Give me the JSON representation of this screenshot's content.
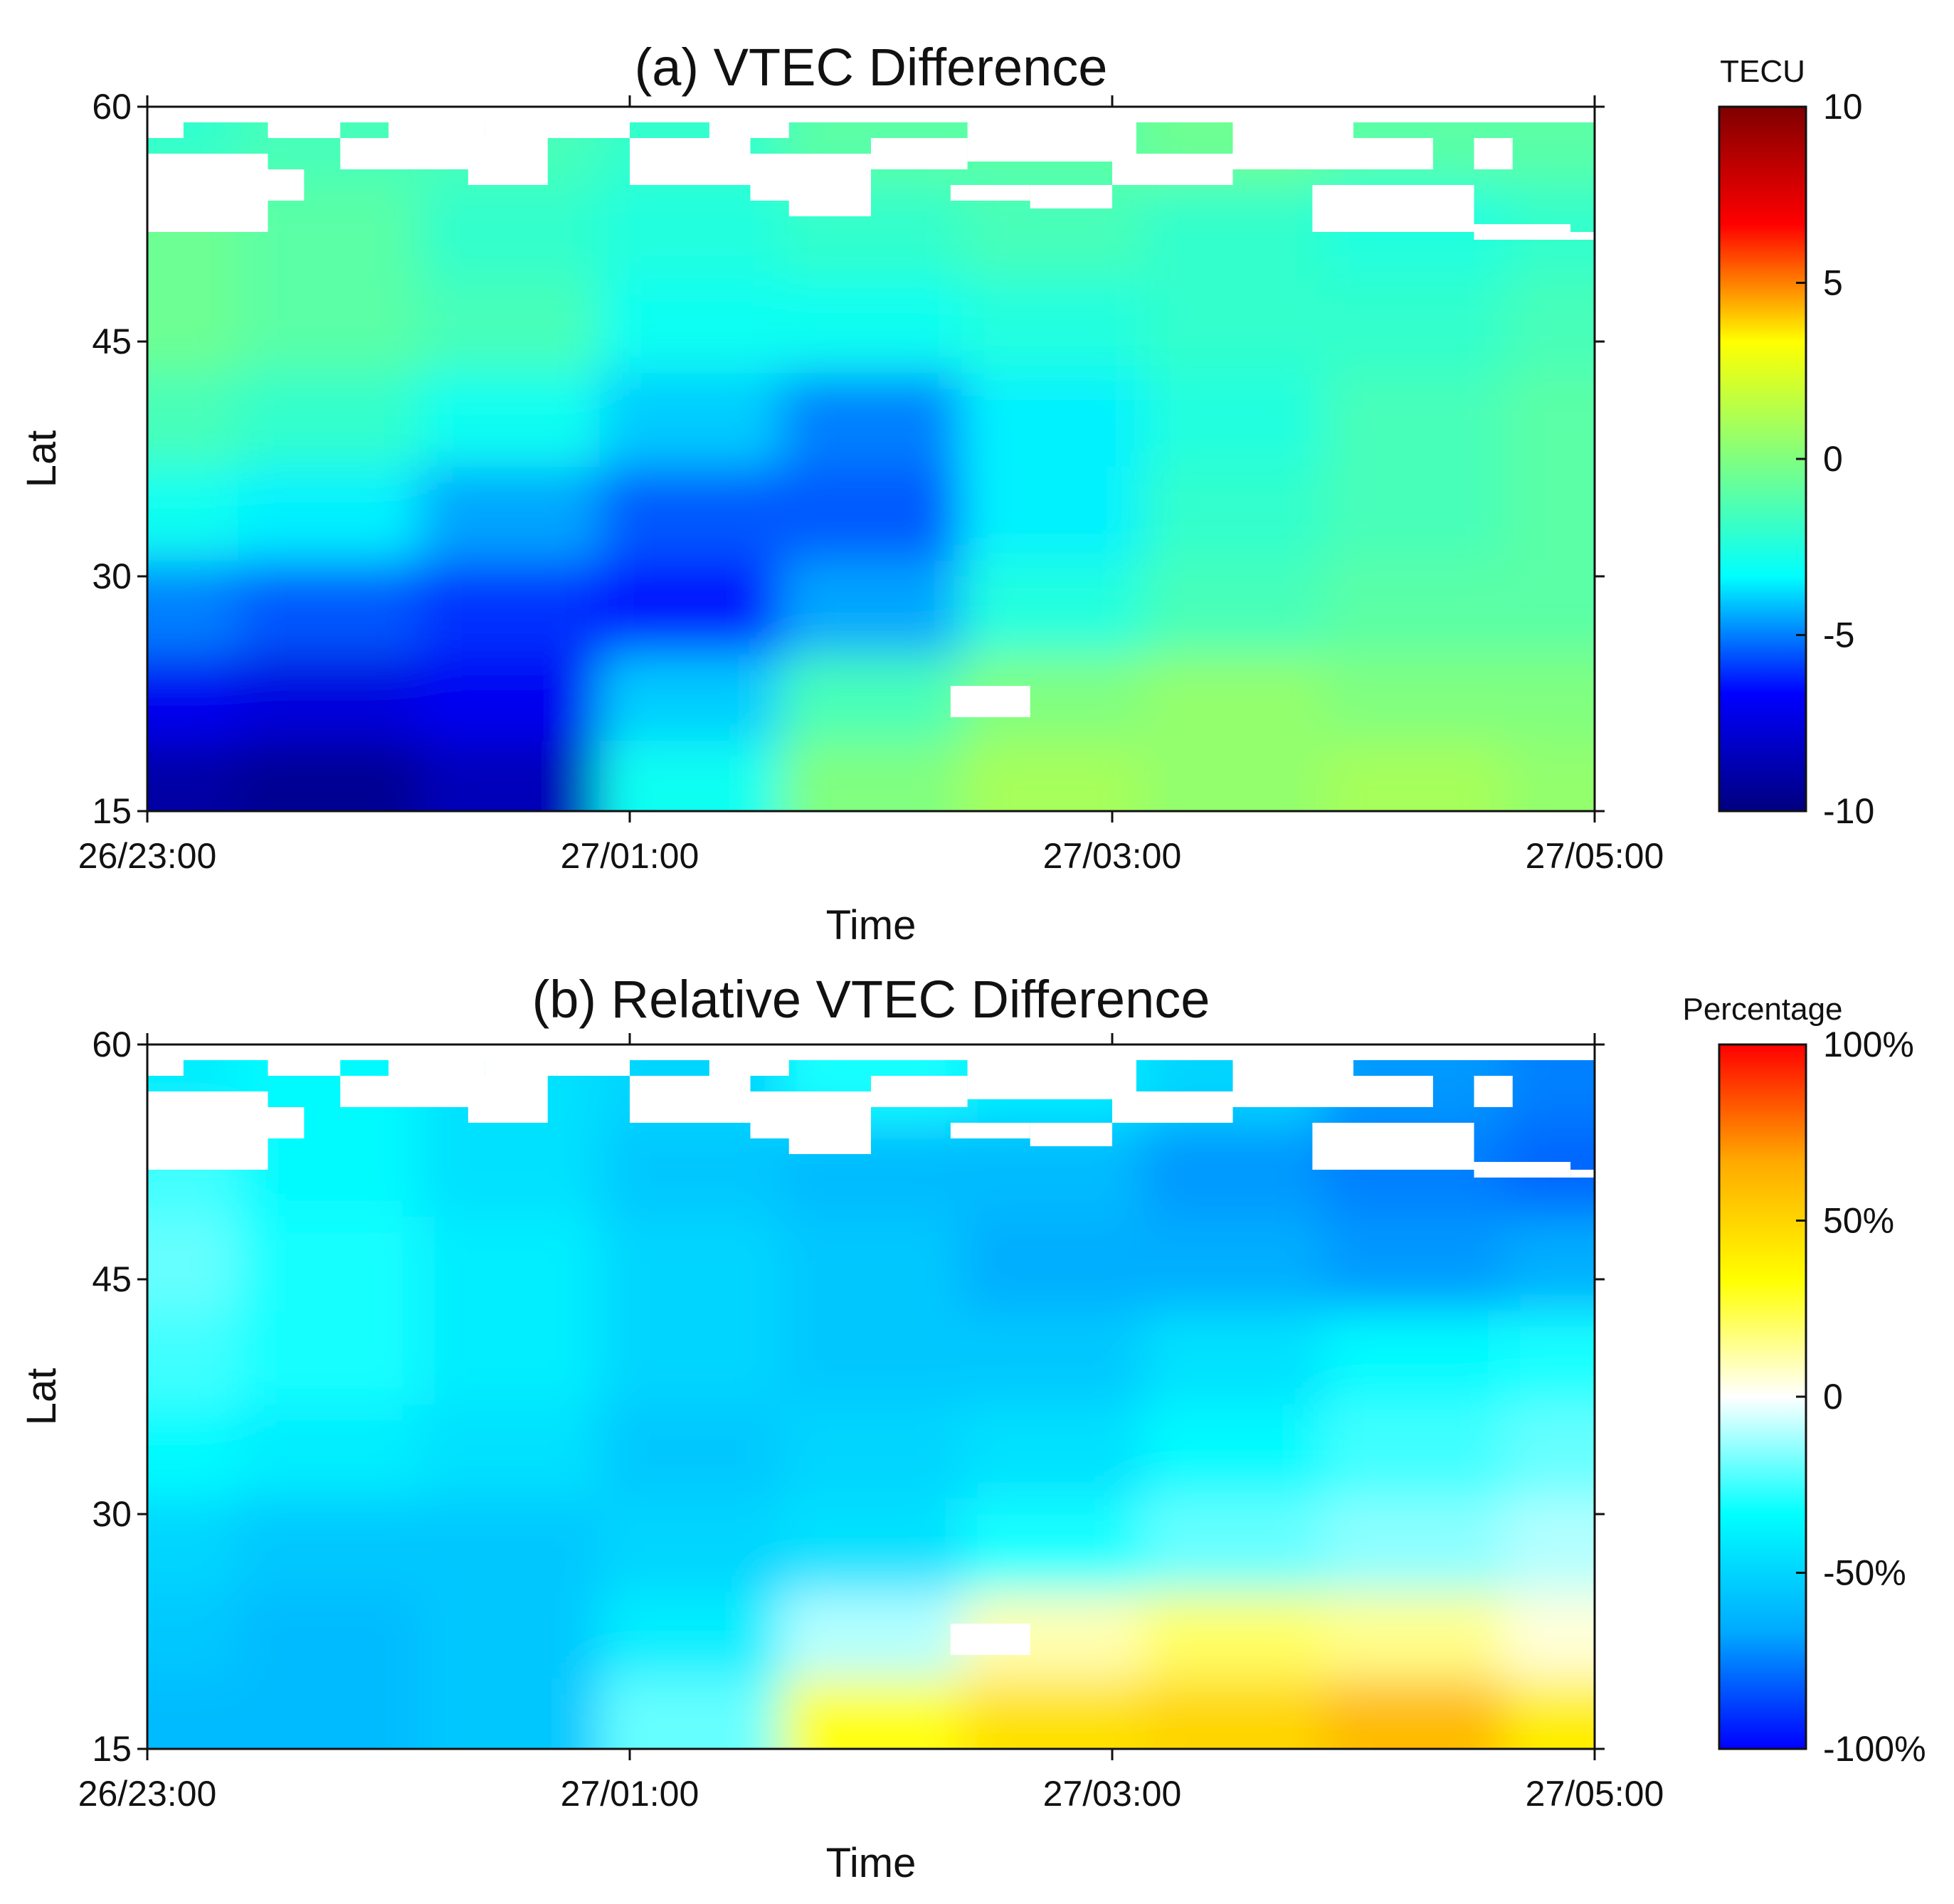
{
  "chart_data": [
    {
      "type": "heatmap",
      "title": "(a) VTEC Difference",
      "xlabel": "Time",
      "ylabel": "Lat",
      "x_ticks": [
        "26/23:00",
        "27/01:00",
        "27/03:00",
        "27/05:00"
      ],
      "x_range_hours": [
        0,
        6
      ],
      "ylim": [
        15,
        60
      ],
      "y_ticks": [
        "15",
        "30",
        "45",
        "60"
      ],
      "colorbar": {
        "title": "TECU",
        "range": [
          -10,
          10
        ],
        "ticks": [
          "10",
          "5",
          "0",
          "-5",
          "-10"
        ],
        "colormap": "jet",
        "stops": [
          "#00007f",
          "#0000ff",
          "#00ffff",
          "#80ff80",
          "#ffff00",
          "#ff0000",
          "#7f0000"
        ]
      },
      "description_grid": {
        "note": "Approximate field sampled on a coarse grid; rows from Lat 60 (top) to Lat 15 (bottom), columns from 26/23:00 to 27/05:00.",
        "lat_rows": [
          58,
          52,
          46,
          40,
          34,
          28,
          22,
          17
        ],
        "time_cols_hours": [
          0,
          0.75,
          1.5,
          2.25,
          3,
          3.75,
          4.5,
          5.25,
          6
        ],
        "values": [
          [
            -2,
            -1.5,
            -1.5,
            -2,
            -1,
            -1,
            -0.5,
            -1,
            -1
          ],
          [
            -0.5,
            -1,
            -2,
            -2.5,
            -2,
            -1.5,
            -2,
            -2.5,
            -2
          ],
          [
            -0.5,
            -1,
            -1.5,
            -3,
            -3,
            -2.5,
            -2,
            -2,
            -1.5
          ],
          [
            -1.5,
            -2,
            -3,
            -4,
            -5,
            -3.5,
            -2.5,
            -1.5,
            -1
          ],
          [
            -3,
            -3.5,
            -4.5,
            -5.5,
            -5.5,
            -3.5,
            -2,
            -1.5,
            -1
          ],
          [
            -5,
            -5.5,
            -6,
            -6.5,
            -4.5,
            -2.5,
            -1.5,
            -1,
            -1
          ],
          [
            -7,
            -7.5,
            -7,
            -4,
            -1.5,
            0,
            0.5,
            0,
            0
          ],
          [
            -9,
            -9.5,
            -8.5,
            -3,
            0,
            1,
            0.5,
            1,
            0.5
          ]
        ]
      }
    },
    {
      "type": "heatmap",
      "title": "(b) Relative VTEC Difference",
      "xlabel": "Time",
      "ylabel": "Lat",
      "x_ticks": [
        "26/23:00",
        "27/01:00",
        "27/03:00",
        "27/05:00"
      ],
      "x_range_hours": [
        0,
        6
      ],
      "ylim": [
        15,
        60
      ],
      "y_ticks": [
        "15",
        "30",
        "45",
        "60"
      ],
      "colorbar": {
        "title": "Percentage",
        "range": [
          -100,
          100
        ],
        "ticks": [
          "100%",
          "50%",
          "0",
          "-50%",
          "-100%"
        ],
        "colormap": "blue-cyan-white-yellow-red",
        "stops": [
          "#0000ff",
          "#00aaff",
          "#00ffff",
          "#ffffff",
          "#ffff00",
          "#ffaa00",
          "#ff0000"
        ]
      },
      "description_grid": {
        "note": "Approximate field sampled on a coarse grid; rows from Lat 60 (top) to Lat 15 (bottom), columns from 26/23:00 to 27/05:00.",
        "lat_rows": [
          58,
          52,
          46,
          40,
          34,
          28,
          22,
          17
        ],
        "time_cols_hours": [
          0,
          0.75,
          1.5,
          2.25,
          3,
          3.75,
          4.5,
          5.25,
          6
        ],
        "values": [
          [
            -40,
            -35,
            -45,
            -50,
            -30,
            -40,
            -50,
            -70,
            -75
          ],
          [
            -25,
            -35,
            -45,
            -55,
            -60,
            -60,
            -70,
            -75,
            -80
          ],
          [
            -20,
            -30,
            -40,
            -50,
            -55,
            -65,
            -65,
            -70,
            -65
          ],
          [
            -25,
            -30,
            -40,
            -50,
            -55,
            -55,
            -45,
            -35,
            -30
          ],
          [
            -35,
            -40,
            -45,
            -55,
            -50,
            -45,
            -35,
            -25,
            -20
          ],
          [
            -50,
            -55,
            -55,
            -50,
            -45,
            -30,
            -20,
            -15,
            -10
          ],
          [
            -55,
            -60,
            -55,
            -40,
            -10,
            10,
            20,
            15,
            5
          ],
          [
            -60,
            -60,
            -55,
            -20,
            30,
            45,
            50,
            60,
            40
          ]
        ]
      }
    }
  ]
}
